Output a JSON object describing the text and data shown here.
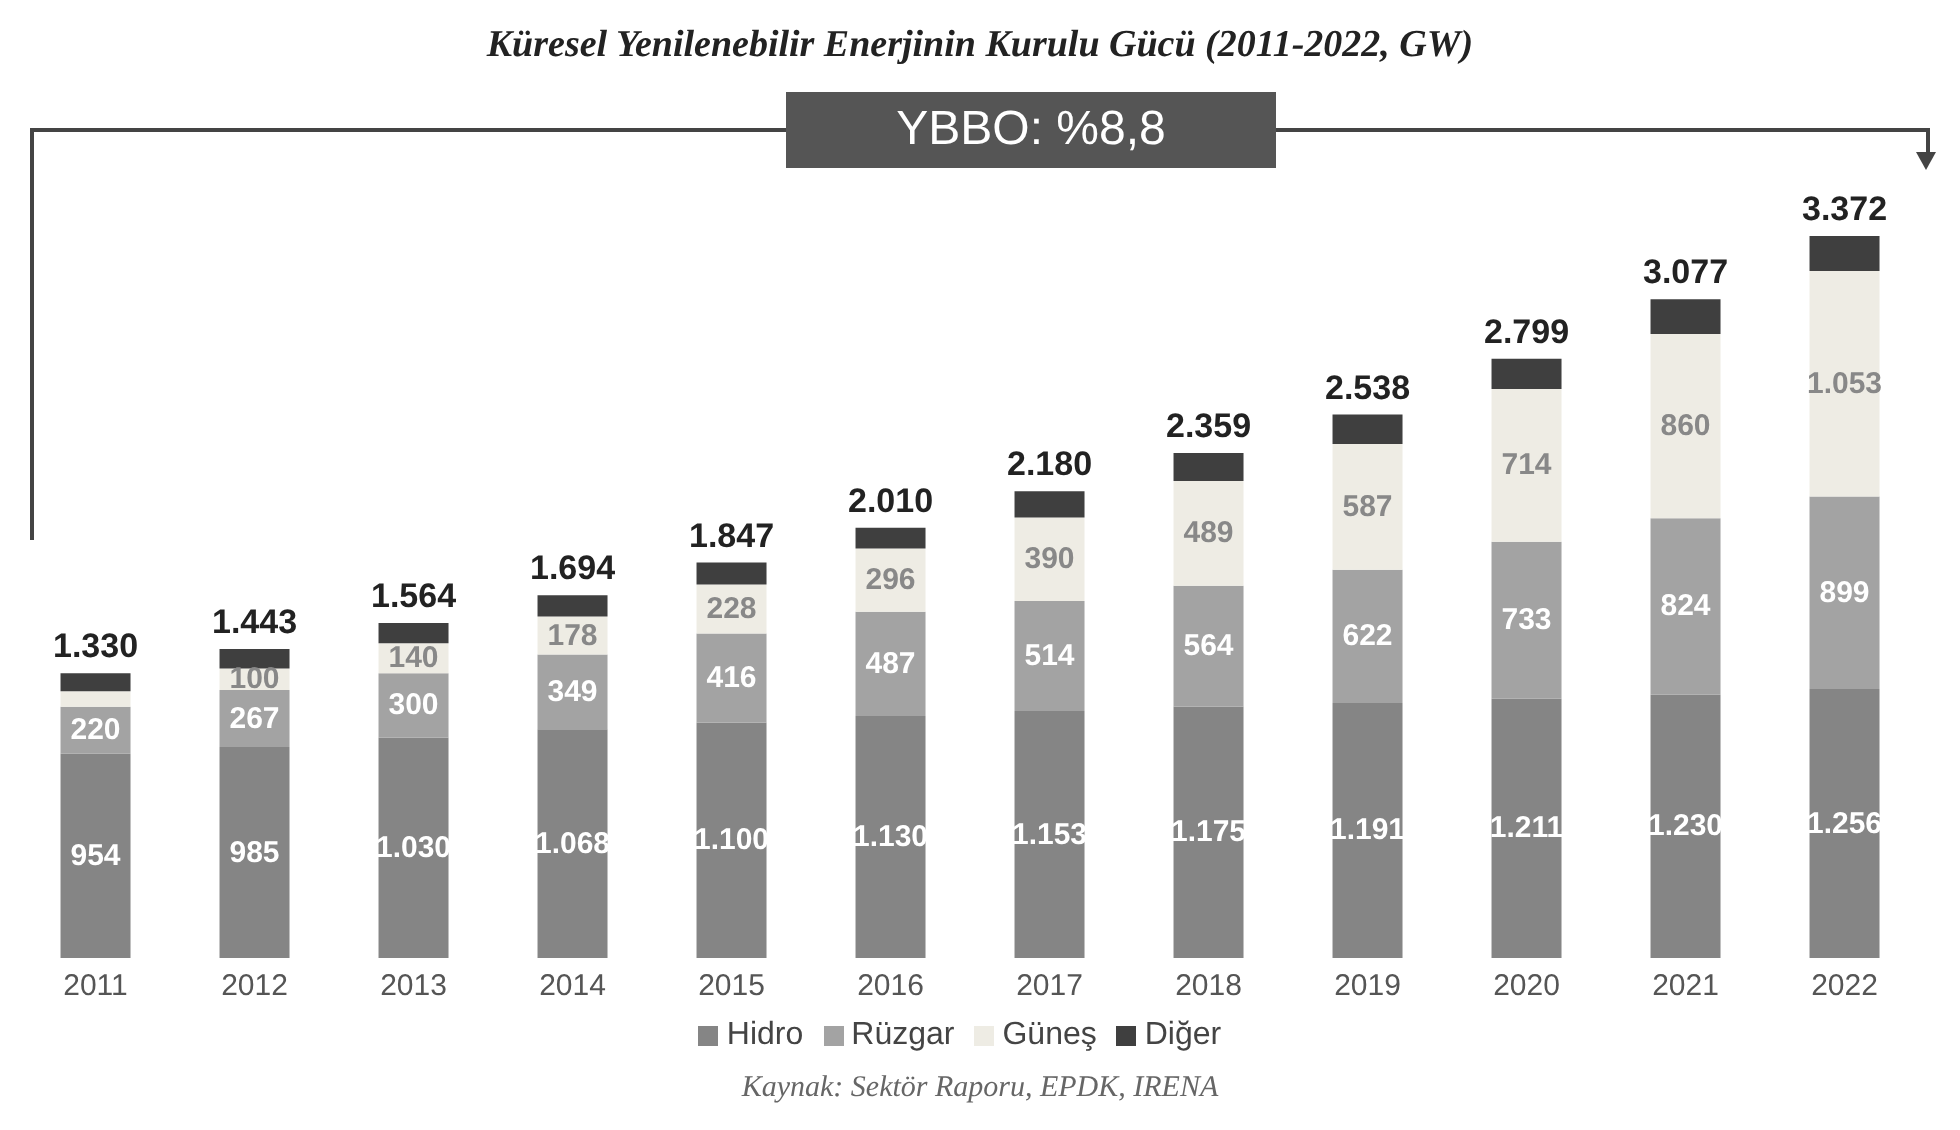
{
  "chart_data": {
    "type": "bar",
    "stacked": true,
    "title": "Küresel Yenilenebilir Enerjinin Kurulu Gücü (2011-2022, GW)",
    "categories": [
      "2011",
      "2012",
      "2013",
      "2014",
      "2015",
      "2016",
      "2017",
      "2018",
      "2019",
      "2020",
      "2021",
      "2022"
    ],
    "series": [
      {
        "name": "Hidro",
        "color": "#858585",
        "values": [
          954,
          985,
          1030,
          1068,
          1100,
          1130,
          1153,
          1175,
          1191,
          1211,
          1230,
          1256
        ],
        "value_labels": [
          "954",
          "985",
          "1.030",
          "1.068",
          "1.100",
          "1.130",
          "1.153",
          "1.175",
          "1.191",
          "1.211",
          "1.230",
          "1.256"
        ]
      },
      {
        "name": "Rüzgar",
        "color": "#a3a3a3",
        "values": [
          220,
          267,
          300,
          349,
          416,
          487,
          514,
          564,
          622,
          733,
          824,
          899
        ],
        "value_labels": [
          "220",
          "267",
          "300",
          "349",
          "416",
          "487",
          "514",
          "564",
          "622",
          "733",
          "824",
          "899"
        ]
      },
      {
        "name": "Güneş",
        "color": "#eeece4",
        "values": [
          72,
          100,
          140,
          178,
          228,
          296,
          390,
          489,
          587,
          714,
          860,
          1053
        ],
        "value_labels": [
          null,
          "100",
          "140",
          "178",
          "228",
          "296",
          "390",
          "489",
          "587",
          "714",
          "860",
          "1.053"
        ]
      },
      {
        "name": "Diğer",
        "color": "#3f3f3f",
        "values": [
          84,
          91,
          94,
          99,
          103,
          97,
          123,
          131,
          138,
          141,
          163,
          164
        ]
      }
    ],
    "totals": [
      "1.330",
      "1.443",
      "1.564",
      "1.694",
      "1.847",
      "2.010",
      "2.180",
      "2.359",
      "2.538",
      "2.799",
      "3.077",
      "3.372"
    ],
    "annotations": [
      "YBBO: %8,8",
      "Kaynak: Sektör Raporu, EPDK, IRENA"
    ],
    "legend": "bottom"
  }
}
